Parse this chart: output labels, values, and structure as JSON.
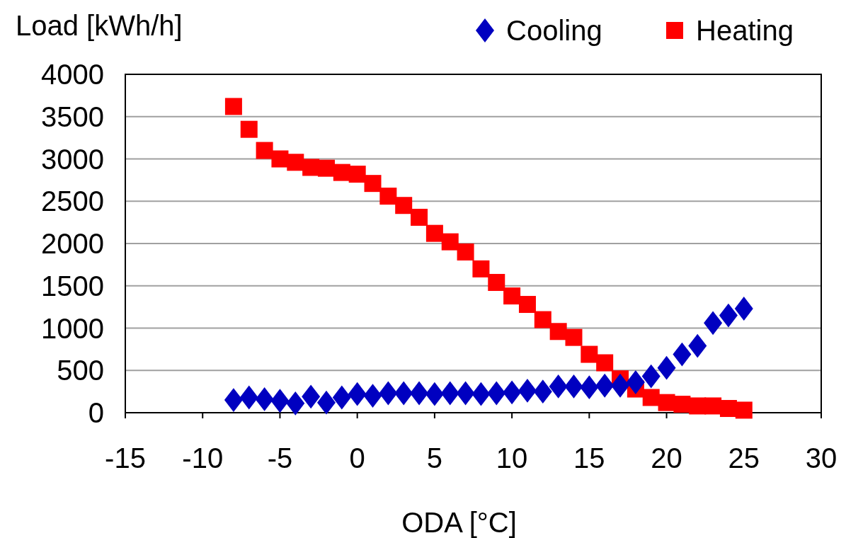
{
  "chart_data": {
    "type": "scatter",
    "xlabel": "ODA [°C]",
    "ylabel": "Load [kWh/h]",
    "x": [
      -8,
      -7,
      -6,
      -5,
      -4,
      -3,
      -2,
      -1,
      0,
      1,
      2,
      3,
      4,
      5,
      6,
      7,
      8,
      9,
      10,
      11,
      12,
      13,
      14,
      15,
      16,
      17,
      18,
      19,
      20,
      21,
      22,
      23,
      24,
      25
    ],
    "series": [
      {
        "name": "Cooling",
        "color": "#0000c0",
        "marker": "diamond",
        "values": [
          150,
          180,
          160,
          140,
          110,
          190,
          120,
          180,
          220,
          200,
          230,
          230,
          230,
          220,
          230,
          230,
          220,
          230,
          240,
          260,
          250,
          310,
          310,
          300,
          320,
          320,
          360,
          430,
          530,
          690,
          790,
          1060,
          1150,
          1230
        ]
      },
      {
        "name": "Heating",
        "color": "#ff0000",
        "marker": "square",
        "values": [
          3620,
          3350,
          3100,
          3000,
          2960,
          2900,
          2890,
          2840,
          2820,
          2710,
          2560,
          2450,
          2310,
          2120,
          2020,
          1900,
          1700,
          1540,
          1380,
          1280,
          1100,
          960,
          890,
          690,
          590,
          400,
          280,
          180,
          120,
          100,
          80,
          80,
          50,
          30
        ]
      }
    ],
    "xlim": [
      -15,
      30
    ],
    "xticks": [
      -15,
      -10,
      -5,
      0,
      5,
      10,
      15,
      20,
      25,
      30
    ],
    "ylim": [
      0,
      4000
    ],
    "yticks": [
      0,
      500,
      1000,
      1500,
      2000,
      2500,
      3000,
      3500,
      4000
    ],
    "grid": "y",
    "legend": "top right"
  }
}
